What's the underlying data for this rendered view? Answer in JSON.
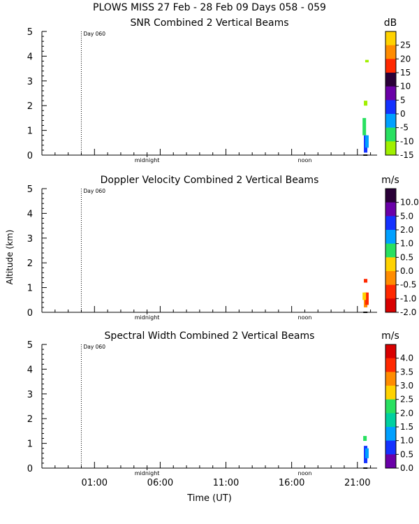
{
  "figure": {
    "title": "PLOWS MISS  27 Feb - 28 Feb 09 Days 058 - 059",
    "ylabel": "Altitude (km)",
    "xlabel": "Time (UT)",
    "x_tick_labels": [
      "01:00",
      "06:00",
      "11:00",
      "16:00",
      "21:00"
    ],
    "day_marker_label": "Day 060",
    "midnight_label": "midnight",
    "noon_label": "noon"
  },
  "chart_data": [
    {
      "type": "heatmap",
      "title": "SNR Combined 2 Vertical Beams",
      "units": "dB",
      "ylim": [
        0,
        5
      ],
      "y_ticks": [
        "0",
        "1",
        "2",
        "3",
        "4",
        "5"
      ],
      "colorbar_labels": [
        "25",
        "20",
        "15",
        "10",
        "5",
        "0",
        "-5",
        "-10",
        "-15"
      ],
      "colorbar_colors": [
        "#ffd200",
        "#ff8c00",
        "#ff2800",
        "#2a0038",
        "#6a00a8",
        "#1432ff",
        "#00a0ff",
        "#28e060",
        "#a0f000"
      ],
      "echoes": [
        {
          "x_hour": 21.6,
          "y_km": 0.1,
          "h_km": 0.7,
          "color": "#1432ff"
        },
        {
          "x_hour": 21.7,
          "y_km": 0.3,
          "h_km": 0.5,
          "color": "#00a0ff"
        },
        {
          "x_hour": 21.5,
          "y_km": 0.8,
          "h_km": 0.7,
          "color": "#28e060"
        },
        {
          "x_hour": 21.6,
          "y_km": 2.0,
          "h_km": 0.2,
          "color": "#a0f000"
        },
        {
          "x_hour": 21.7,
          "y_km": 3.75,
          "h_km": 0.1,
          "color": "#a0f000"
        }
      ]
    },
    {
      "type": "heatmap",
      "title": "Doppler Velocity Combined 2 Vertical Beams",
      "units": "m/s",
      "ylim": [
        0,
        5
      ],
      "y_ticks": [
        "0",
        "1",
        "2",
        "3",
        "4",
        "5"
      ],
      "colorbar_labels": [
        "10.0",
        "5.0",
        "2.0",
        "1.0",
        "0.5",
        "0.0",
        "-0.5",
        "-1.0",
        "-2.0"
      ],
      "colorbar_colors": [
        "#2a0038",
        "#6a00a8",
        "#1432ff",
        "#00a0ff",
        "#28e060",
        "#ffd200",
        "#ff8c00",
        "#ff2800",
        "#d80000"
      ],
      "echoes": [
        {
          "x_hour": 21.6,
          "y_km": 0.2,
          "h_km": 0.6,
          "color": "#ff8c00"
        },
        {
          "x_hour": 21.7,
          "y_km": 0.3,
          "h_km": 0.5,
          "color": "#ff2800"
        },
        {
          "x_hour": 21.5,
          "y_km": 0.5,
          "h_km": 0.3,
          "color": "#ffd200"
        },
        {
          "x_hour": 21.6,
          "y_km": 1.2,
          "h_km": 0.15,
          "color": "#ff2800"
        }
      ]
    },
    {
      "type": "heatmap",
      "title": "Spectral Width Combined 2 Vertical Beams",
      "units": "m/s",
      "ylim": [
        0,
        5
      ],
      "y_ticks": [
        "0",
        "1",
        "2",
        "3",
        "4",
        "5"
      ],
      "colorbar_labels": [
        "4.0",
        "3.5",
        "3.0",
        "2.5",
        "2.0",
        "1.5",
        "1.0",
        "0.5",
        "0.0"
      ],
      "colorbar_colors": [
        "#d80000",
        "#ff2800",
        "#ff8c00",
        "#ffd200",
        "#28e060",
        "#00d0a0",
        "#00a0ff",
        "#1432ff",
        "#6a00a8"
      ],
      "echoes": [
        {
          "x_hour": 21.6,
          "y_km": 0.2,
          "h_km": 0.7,
          "color": "#1432ff"
        },
        {
          "x_hour": 21.7,
          "y_km": 0.4,
          "h_km": 0.4,
          "color": "#00a0ff"
        },
        {
          "x_hour": 21.55,
          "y_km": 1.1,
          "h_km": 0.2,
          "color": "#28e060"
        }
      ]
    }
  ]
}
